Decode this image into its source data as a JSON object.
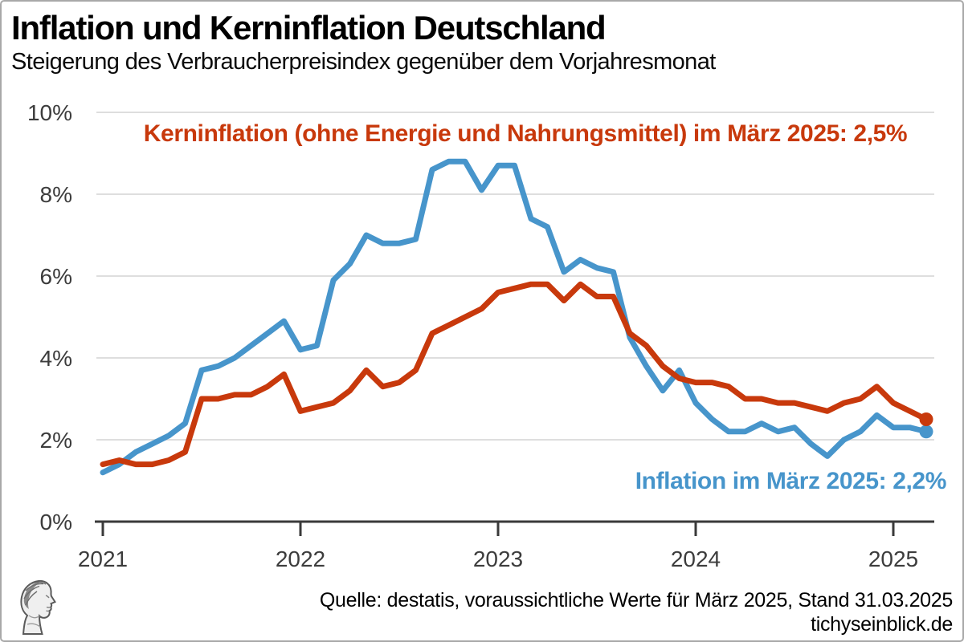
{
  "header": {
    "title": "Inflation und Kerninflation Deutschland",
    "subtitle": "Steigerung des Verbraucherpreisindex gegenüber dem Vorjahresmonat"
  },
  "footer": {
    "source": "Quelle: destatis, voraussichtliche Werte für März 2025, Stand 31.03.2025",
    "website": "tichyseinblick.de",
    "logo": "tichyseinblick-head-logo"
  },
  "colors": {
    "inflation_blue": "#4795cb",
    "core_red": "#c8390c",
    "axis_text": "#3c3c3c",
    "gridline": "#dedede",
    "axis_line": "#3a3a3a",
    "background": "#ffffff",
    "border": "#a9a9a9"
  },
  "chart_data": {
    "type": "line",
    "title": "Inflation und Kerninflation Deutschland",
    "subtitle": "Steigerung des Verbraucherpreisindex gegenüber dem Vorjahresmonat",
    "x_start": "2021-01",
    "x_end": "2025-03",
    "frequency": "monthly",
    "unit": "percent year-over-year",
    "ylim": [
      0,
      10
    ],
    "grid": "horizontal",
    "y_ticks": {
      "values": [
        0,
        2,
        4,
        6,
        8,
        10
      ],
      "labels": [
        "0%",
        "2%",
        "4%",
        "6%",
        "8%",
        "10%"
      ]
    },
    "x_ticks": {
      "month_indices": [
        0,
        12,
        24,
        36,
        48
      ],
      "labels": [
        "2021",
        "2022",
        "2023",
        "2024",
        "2025"
      ]
    },
    "series": [
      {
        "name": "Inflation",
        "color": "#4795cb",
        "end_marker": true,
        "last_value_label": "2,2%",
        "values": [
          1.2,
          1.4,
          1.7,
          1.9,
          2.1,
          2.4,
          3.7,
          3.8,
          4.0,
          4.3,
          4.6,
          4.9,
          4.2,
          4.3,
          5.9,
          6.3,
          7.0,
          6.8,
          6.8,
          6.9,
          8.6,
          8.8,
          8.8,
          8.1,
          8.7,
          8.7,
          7.4,
          7.2,
          6.1,
          6.4,
          6.2,
          6.1,
          4.5,
          3.8,
          3.2,
          3.7,
          2.9,
          2.5,
          2.2,
          2.2,
          2.4,
          2.2,
          2.3,
          1.9,
          1.6,
          2.0,
          2.2,
          2.6,
          2.3,
          2.3,
          2.2
        ]
      },
      {
        "name": "Kerninflation (ohne Energie und Nahrungsmittel)",
        "color": "#c8390c",
        "end_marker": true,
        "last_value_label": "2,5%",
        "values": [
          1.4,
          1.5,
          1.4,
          1.4,
          1.5,
          1.7,
          3.0,
          3.0,
          3.1,
          3.1,
          3.3,
          3.6,
          2.7,
          2.8,
          2.9,
          3.2,
          3.7,
          3.3,
          3.4,
          3.7,
          4.6,
          4.8,
          5.0,
          5.2,
          5.6,
          5.7,
          5.8,
          5.8,
          5.4,
          5.8,
          5.5,
          5.5,
          4.6,
          4.3,
          3.8,
          3.5,
          3.4,
          3.4,
          3.3,
          3.0,
          3.0,
          2.9,
          2.9,
          2.8,
          2.7,
          2.9,
          3.0,
          3.3,
          2.9,
          2.7,
          2.5
        ]
      }
    ],
    "annotations": [
      {
        "text": "Kerninflation (ohne Energie und Nahrungsmittel) im März 2025: 2,5%",
        "color": "#c8390c"
      },
      {
        "text": "Inflation im März 2025: 2,2%",
        "color": "#4795cb"
      }
    ]
  }
}
